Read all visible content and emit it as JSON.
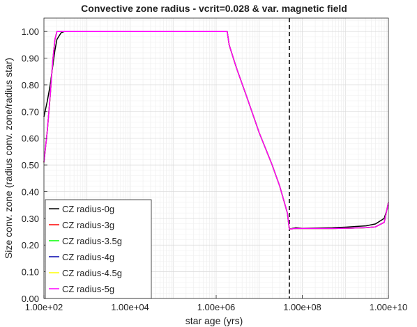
{
  "chart_data": {
    "type": "line",
    "title": "Convective zone radius - vcrit=0.028 & var. magnetic field",
    "xlabel": "star age (yrs)",
    "ylabel": "Size conv. zone (radius conv. zone/radius star)",
    "xscale": "log",
    "xlim": [
      100,
      10000000000
    ],
    "ylim": [
      0,
      1.05
    ],
    "x_ticks": [
      {
        "value": 100,
        "label": "1.00e+02"
      },
      {
        "value": 10000,
        "label": "1.00e+04"
      },
      {
        "value": 1000000,
        "label": "1.00e+06"
      },
      {
        "value": 100000000,
        "label": "1.00e+08"
      },
      {
        "value": 10000000000,
        "label": "1.00e+10"
      }
    ],
    "y_ticks": [
      {
        "value": 0.0,
        "label": "0.00"
      },
      {
        "value": 0.1,
        "label": "0.10"
      },
      {
        "value": 0.2,
        "label": "0.20"
      },
      {
        "value": 0.3,
        "label": "0.30"
      },
      {
        "value": 0.4,
        "label": "0.40"
      },
      {
        "value": 0.5,
        "label": "0.50"
      },
      {
        "value": 0.6,
        "label": "0.60"
      },
      {
        "value": 0.7,
        "label": "0.70"
      },
      {
        "value": 0.8,
        "label": "0.80"
      },
      {
        "value": 0.9,
        "label": "0.90"
      },
      {
        "value": 1.0,
        "label": "1.00"
      }
    ],
    "grid": true,
    "legend_position": "bottom-left",
    "vline": {
      "x": 50000000,
      "style": "dashed",
      "color": "#000000"
    },
    "series": [
      {
        "name": "CZ radius-0g",
        "color": "#000000",
        "x": [
          100,
          120,
          140,
          160,
          180,
          200,
          250,
          300,
          500,
          1000,
          2000,
          10000,
          100000,
          1000000,
          1800000,
          2000000,
          2500000,
          3000000,
          5000000,
          10000000,
          20000000,
          30000000,
          45000000,
          50000000,
          70000000,
          100000000,
          200000000,
          500000000,
          1000000000,
          3000000000,
          5000000000,
          8000000000,
          10000000000
        ],
        "y": [
          0.68,
          0.74,
          0.8,
          0.87,
          0.93,
          0.97,
          0.995,
          1.0,
          1.0,
          1.0,
          1.0,
          1.0,
          1.0,
          1.0,
          1.0,
          0.95,
          0.9,
          0.86,
          0.76,
          0.62,
          0.5,
          0.42,
          0.32,
          0.26,
          0.265,
          0.263,
          0.264,
          0.265,
          0.267,
          0.272,
          0.279,
          0.3,
          0.35
        ]
      },
      {
        "name": "CZ radius-3g",
        "color": "#ff0000",
        "x": [
          100,
          120,
          140,
          160,
          180,
          200,
          250,
          300,
          500,
          1000,
          2000,
          10000,
          100000,
          1000000,
          1800000,
          2000000,
          2500000,
          3000000,
          5000000,
          10000000,
          20000000,
          30000000,
          45000000,
          50000000,
          70000000,
          100000000,
          200000000,
          500000000,
          1000000000,
          3000000000,
          5000000000,
          8000000000,
          10000000000
        ],
        "y": [
          0.51,
          0.63,
          0.76,
          0.89,
          0.97,
          1.0,
          1.0,
          1.0,
          1.0,
          1.0,
          1.0,
          1.0,
          1.0,
          1.0,
          1.0,
          0.95,
          0.9,
          0.86,
          0.76,
          0.62,
          0.5,
          0.42,
          0.32,
          0.26,
          0.262,
          0.262,
          0.262,
          0.262,
          0.263,
          0.265,
          0.268,
          0.285,
          0.36
        ]
      },
      {
        "name": "CZ radius-3.5g",
        "color": "#00ff00",
        "x": [
          100,
          120,
          140,
          160,
          180,
          200,
          250,
          300,
          500,
          1000,
          2000,
          10000,
          100000,
          1000000,
          1800000,
          2000000,
          2500000,
          3000000,
          5000000,
          10000000,
          20000000,
          30000000,
          45000000,
          50000000,
          70000000,
          100000000,
          200000000,
          500000000,
          1000000000,
          3000000000,
          5000000000,
          8000000000,
          10000000000
        ],
        "y": [
          0.51,
          0.63,
          0.76,
          0.89,
          0.97,
          1.0,
          1.0,
          1.0,
          1.0,
          1.0,
          1.0,
          1.0,
          1.0,
          1.0,
          1.0,
          0.95,
          0.9,
          0.86,
          0.76,
          0.62,
          0.5,
          0.42,
          0.32,
          0.26,
          0.262,
          0.262,
          0.262,
          0.262,
          0.263,
          0.265,
          0.268,
          0.285,
          0.36
        ]
      },
      {
        "name": "CZ radius-4g",
        "color": "#0000aa",
        "x": [
          100,
          120,
          140,
          160,
          180,
          200,
          250,
          300,
          500,
          1000,
          2000,
          10000,
          100000,
          1000000,
          1800000,
          2000000,
          2500000,
          3000000,
          5000000,
          10000000,
          20000000,
          30000000,
          45000000,
          50000000,
          70000000,
          100000000,
          200000000,
          500000000,
          1000000000,
          3000000000,
          5000000000,
          8000000000,
          10000000000
        ],
        "y": [
          0.51,
          0.63,
          0.76,
          0.89,
          0.97,
          1.0,
          1.0,
          1.0,
          1.0,
          1.0,
          1.0,
          1.0,
          1.0,
          1.0,
          1.0,
          0.95,
          0.9,
          0.86,
          0.76,
          0.62,
          0.5,
          0.42,
          0.32,
          0.26,
          0.262,
          0.262,
          0.262,
          0.262,
          0.263,
          0.265,
          0.268,
          0.285,
          0.36
        ]
      },
      {
        "name": "CZ radius-4.5g",
        "color": "#ffff00",
        "x": [
          100,
          120,
          140,
          160,
          180,
          200,
          250,
          300,
          500,
          1000,
          2000,
          10000,
          100000,
          1000000,
          1800000,
          2000000,
          2500000,
          3000000,
          5000000,
          10000000,
          20000000,
          30000000,
          45000000,
          50000000,
          70000000,
          100000000,
          200000000,
          500000000,
          1000000000,
          3000000000,
          5000000000,
          8000000000,
          10000000000
        ],
        "y": [
          0.51,
          0.63,
          0.76,
          0.89,
          0.97,
          1.0,
          1.0,
          1.0,
          1.0,
          1.0,
          1.0,
          1.0,
          1.0,
          1.0,
          1.0,
          0.95,
          0.9,
          0.86,
          0.76,
          0.62,
          0.5,
          0.42,
          0.32,
          0.26,
          0.262,
          0.262,
          0.262,
          0.262,
          0.263,
          0.265,
          0.268,
          0.285,
          0.36
        ]
      },
      {
        "name": "CZ radius-5g",
        "color": "#ff00ff",
        "x": [
          100,
          120,
          140,
          160,
          180,
          200,
          250,
          300,
          500,
          1000,
          2000,
          10000,
          100000,
          1000000,
          1800000,
          2000000,
          2500000,
          3000000,
          5000000,
          10000000,
          20000000,
          30000000,
          45000000,
          50000000,
          70000000,
          100000000,
          200000000,
          500000000,
          1000000000,
          3000000000,
          5000000000,
          8000000000,
          10000000000
        ],
        "y": [
          0.51,
          0.63,
          0.76,
          0.89,
          0.97,
          1.0,
          1.0,
          1.0,
          1.0,
          1.0,
          1.0,
          1.0,
          1.0,
          1.0,
          1.0,
          0.95,
          0.9,
          0.86,
          0.76,
          0.62,
          0.5,
          0.42,
          0.32,
          0.26,
          0.262,
          0.262,
          0.262,
          0.262,
          0.263,
          0.265,
          0.268,
          0.285,
          0.36
        ]
      }
    ]
  }
}
